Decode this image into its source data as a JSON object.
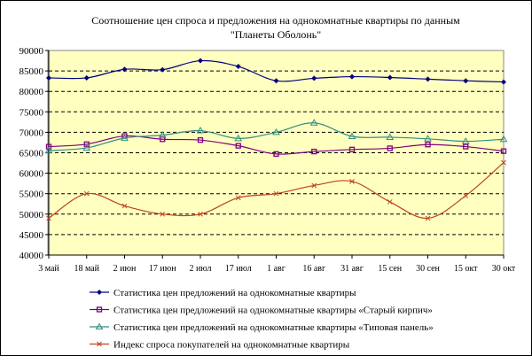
{
  "chart_data": {
    "type": "line",
    "title_line1": "Соотношение цен спроса и предложения на однокомнатные квартиры по данным",
    "title_line2": "\"Планеты Оболонь\"",
    "ylim": [
      40000,
      90000
    ],
    "ystep": 5000,
    "grid": true,
    "legend_position": "bottom",
    "categories": [
      "3 май",
      "18 май",
      "2 июн",
      "17 июн",
      "2 июл",
      "17 июл",
      "1 авг",
      "16 авг",
      "31 авг",
      "15 сен",
      "30 сен",
      "15 окт",
      "30 окт"
    ],
    "series": [
      {
        "name": "Статистика цен предложений на однокомнатные квартиры",
        "color": "#000080",
        "marker": "diamond",
        "values": [
          83300,
          83300,
          85400,
          85300,
          87500,
          86100,
          82600,
          83200,
          83600,
          83400,
          83000,
          82600,
          82300
        ]
      },
      {
        "name": "Статистика цен предложений на однокомнатные квартиры «Старый кирпич»",
        "color": "#800080",
        "marker": "square",
        "values": [
          66500,
          67100,
          69100,
          68300,
          68100,
          66700,
          64700,
          65300,
          65800,
          66100,
          67000,
          66500,
          65400
        ]
      },
      {
        "name": "Статистика цен предложений на однокомнатные квартиры «Типовая панель»",
        "color": "#2f8f80",
        "marker": "triangle",
        "values": [
          65500,
          66200,
          68600,
          69300,
          70400,
          68500,
          70000,
          72300,
          69000,
          68800,
          68400,
          67800,
          68300
        ]
      },
      {
        "name": "Индекс спроса покупателей на однокомнатные квартиры",
        "color": "#c04020",
        "marker": "x",
        "values": [
          49000,
          55000,
          52000,
          50000,
          50000,
          54000,
          55000,
          57000,
          58000,
          53000,
          49000,
          54500,
          62600
        ]
      }
    ]
  }
}
